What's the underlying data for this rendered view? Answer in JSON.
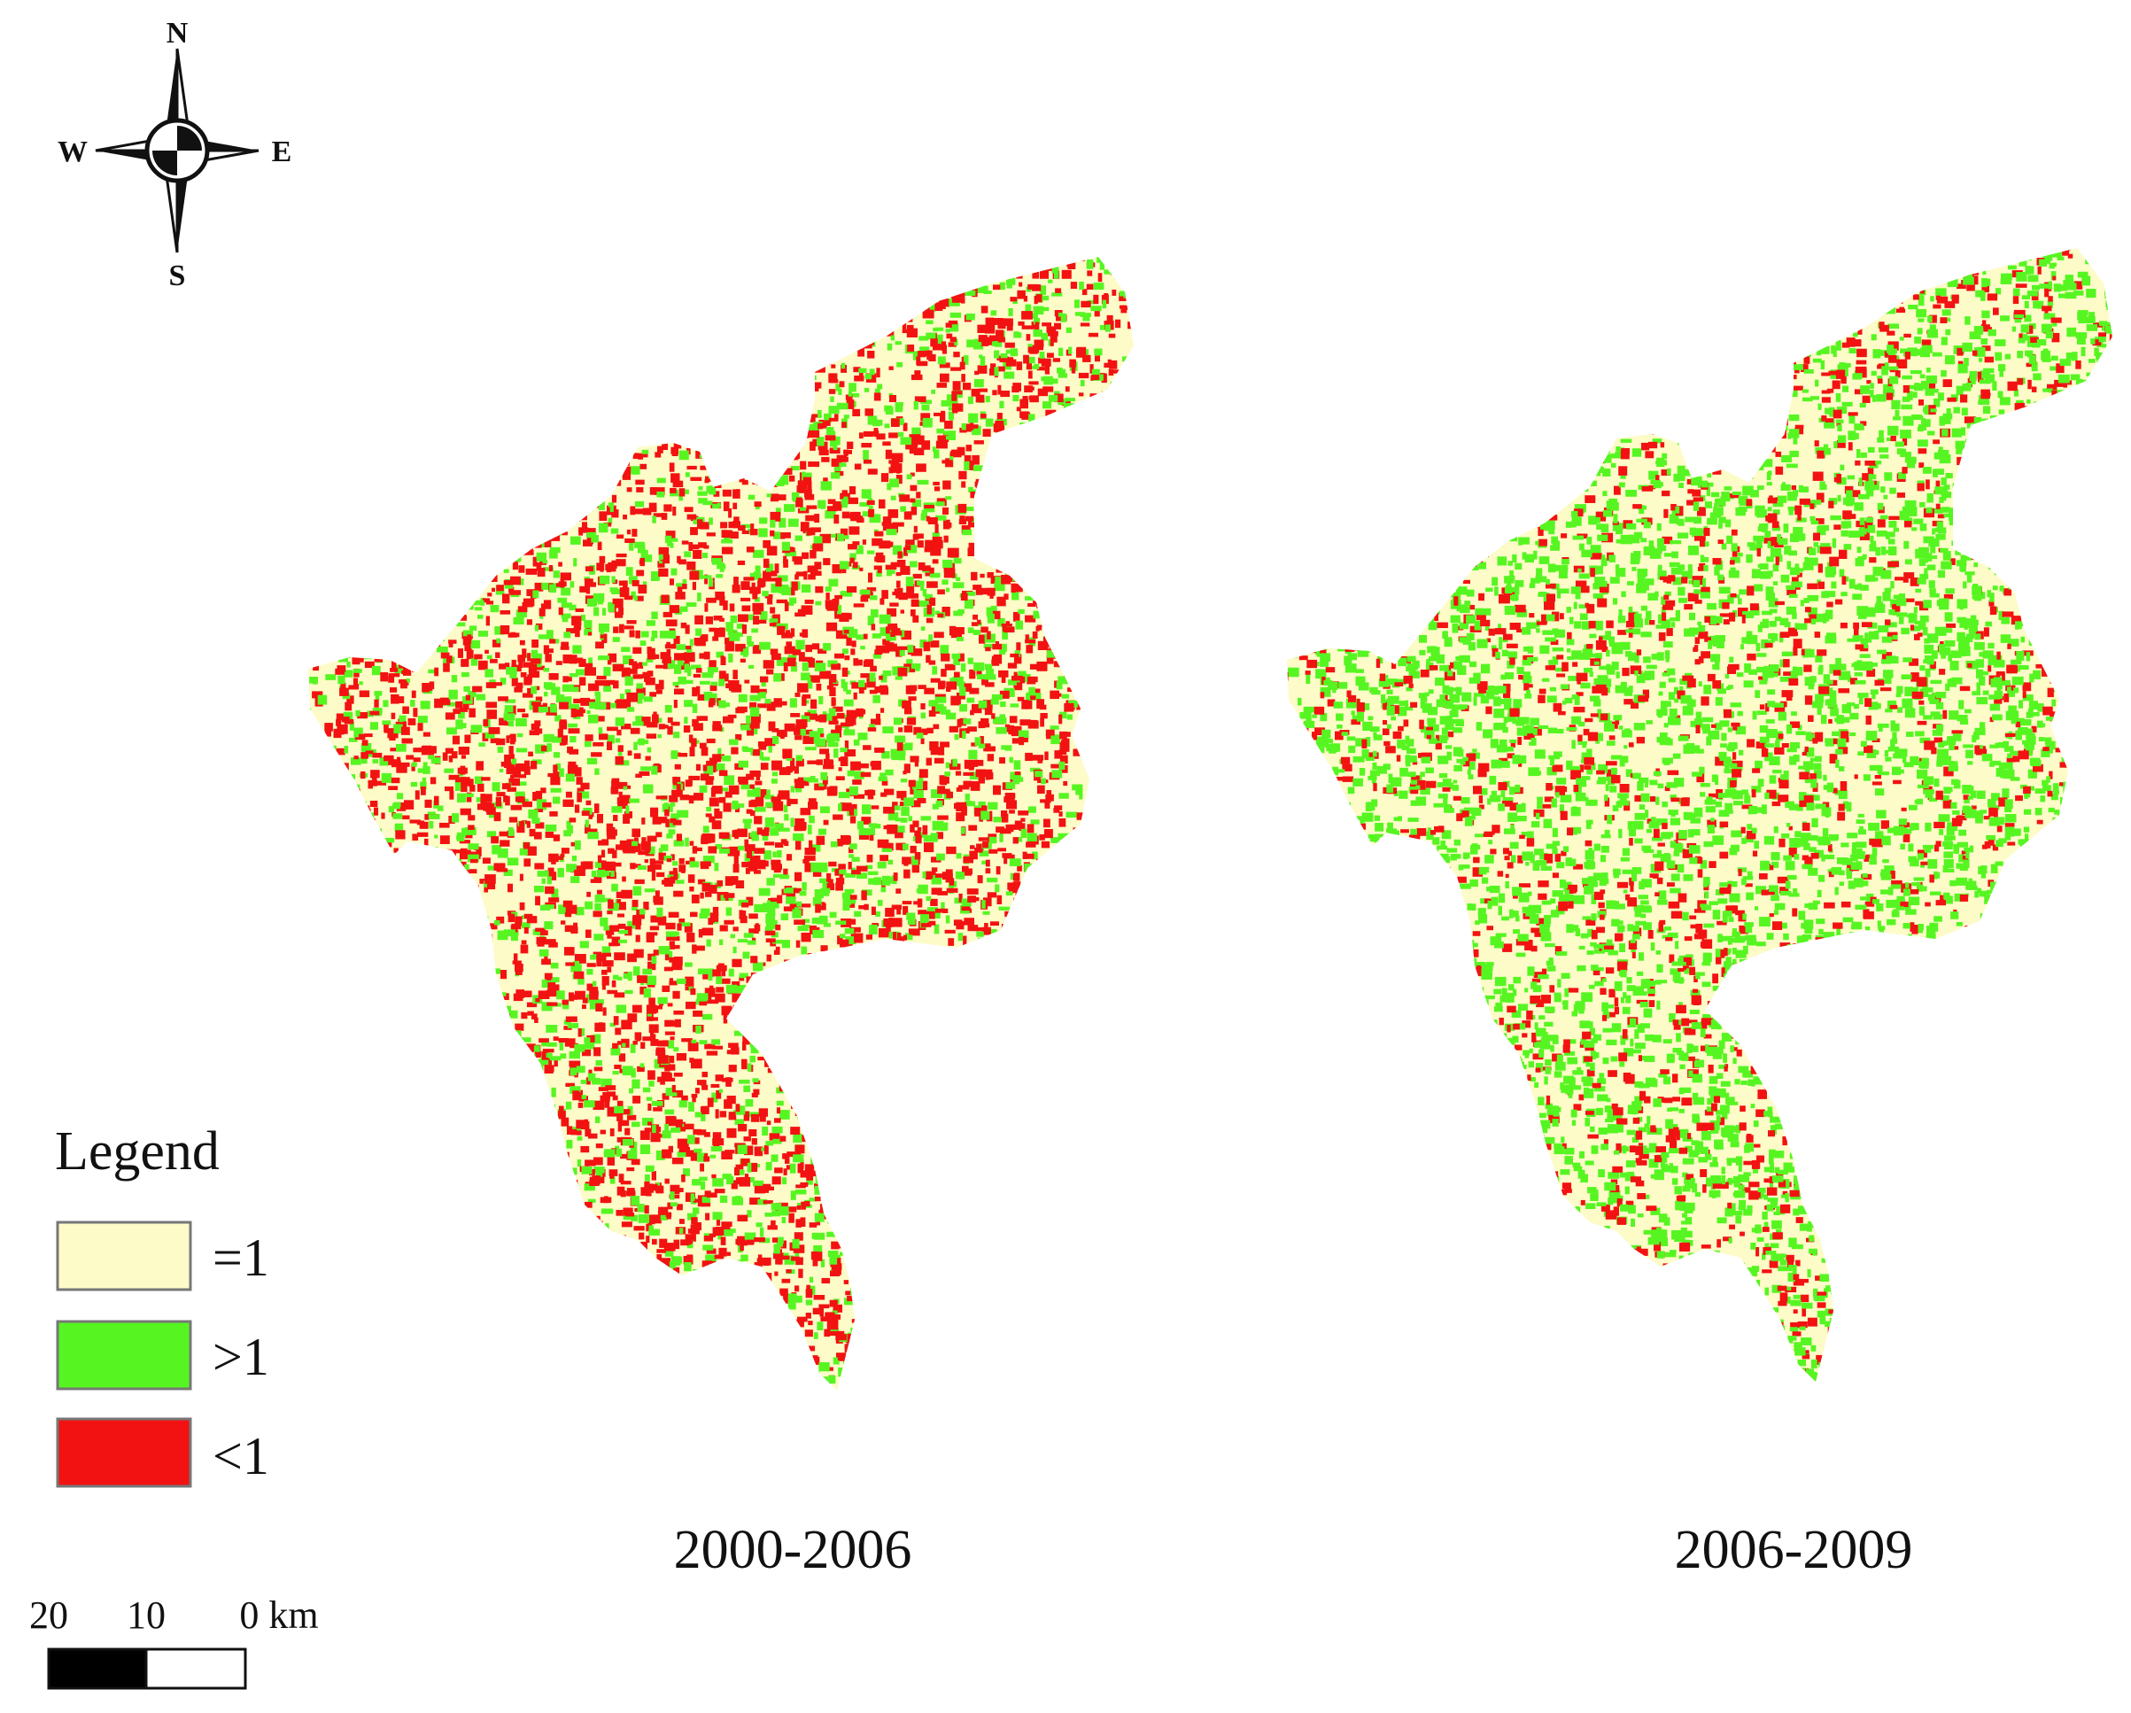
{
  "compass": {
    "north": "N",
    "south": "S",
    "east": "E",
    "west": "W",
    "icon": "north-arrow-compass-rose"
  },
  "panels": [
    {
      "caption": "2000-2006",
      "dominant_class": "lt1"
    },
    {
      "caption": "2006-2009",
      "dominant_class": "gt1"
    }
  ],
  "legend": {
    "title": "Legend",
    "items": [
      {
        "key": "eq1",
        "label": "=1",
        "color": "#fdfbc8"
      },
      {
        "key": "gt1",
        "label": ">1",
        "color": "#56f522"
      },
      {
        "key": "lt1",
        "label": "<1",
        "color": "#f21212"
      }
    ]
  },
  "scale_bar": {
    "labels": [
      "20",
      "10",
      "0 km"
    ],
    "segment_colors": [
      "#000000",
      "#ffffff"
    ]
  }
}
